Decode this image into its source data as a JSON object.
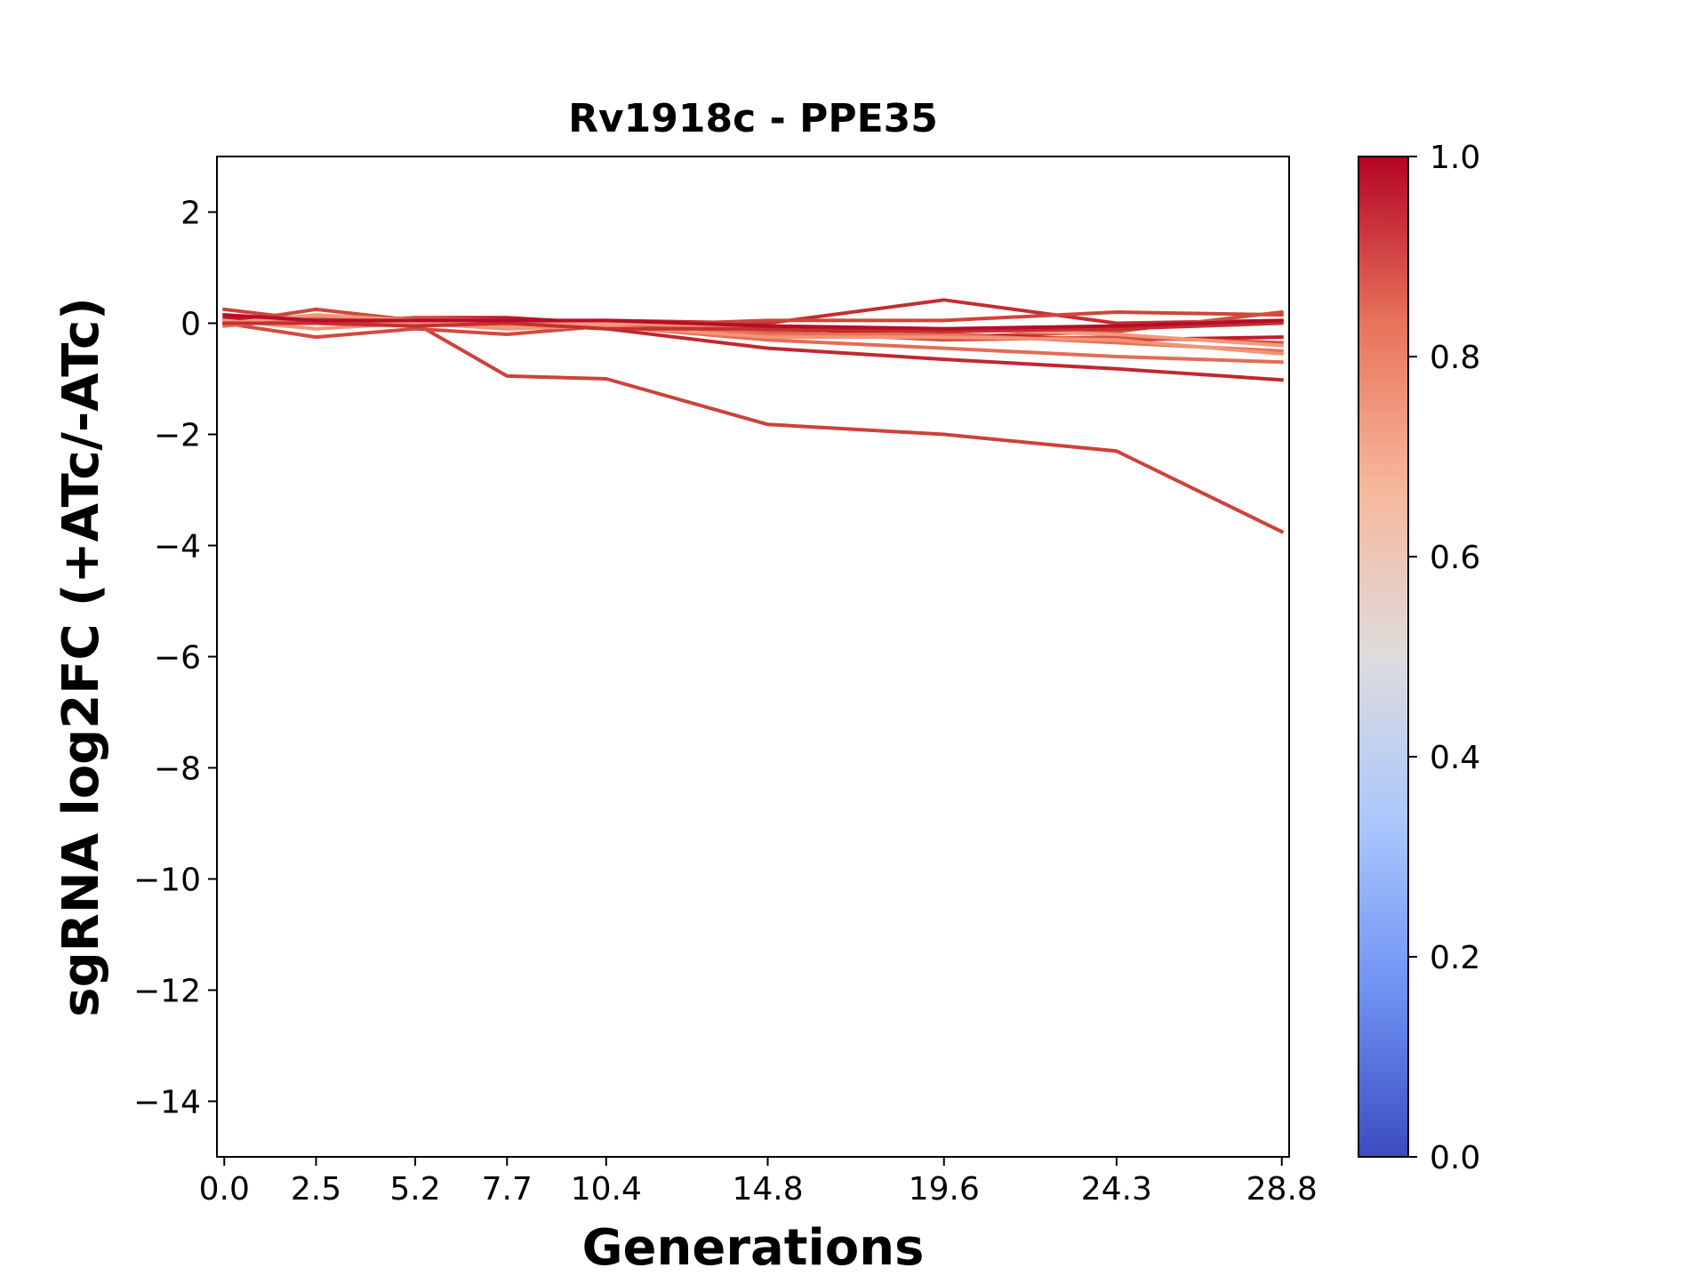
{
  "chart_data": {
    "type": "line",
    "title": "Rv1918c - PPE35",
    "xlabel": "Generations",
    "ylabel": "sgRNA log2FC (+ATc/-ATc)",
    "x": [
      0.0,
      2.5,
      5.2,
      7.7,
      10.4,
      14.8,
      19.6,
      24.3,
      28.8
    ],
    "xticks": [
      "0.0",
      "2.5",
      "5.2",
      "7.7",
      "10.4",
      "14.8",
      "19.6",
      "24.3",
      "28.8"
    ],
    "yticks": [
      2,
      0,
      -2,
      -4,
      -6,
      -8,
      -10,
      -12,
      -14
    ],
    "ytick_labels": [
      "2",
      "0",
      "−2",
      "−4",
      "−6",
      "−8",
      "−10",
      "−12",
      "−14"
    ],
    "xlim": [
      -0.2,
      29.0
    ],
    "ylim": [
      -15,
      3
    ],
    "colorbar": {
      "colormap": "coolwarm",
      "range": [
        0.0,
        1.0
      ],
      "ticks": [
        "0.0",
        "0.2",
        "0.4",
        "0.6",
        "0.8",
        "1.0"
      ],
      "stops": [
        "#3b4cc0",
        "#6f92f3",
        "#aac7fd",
        "#dddcdc",
        "#f7b89c",
        "#e7745b",
        "#b40426"
      ]
    },
    "grid": false,
    "series": [
      {
        "values": [
          0.25,
          0.05,
          0.0,
          -0.95,
          -1.0,
          -1.82,
          -2.0,
          -2.3,
          -3.75
        ],
        "color": "#cd423b"
      },
      {
        "values": [
          0.0,
          0.0,
          0.0,
          0.0,
          -0.1,
          -0.45,
          -0.65,
          -0.82,
          -1.02
        ],
        "color": "#c0282f"
      },
      {
        "values": [
          0.05,
          0.0,
          0.05,
          0.0,
          -0.05,
          -0.3,
          -0.45,
          -0.6,
          -0.7
        ],
        "color": "#e36c55"
      },
      {
        "values": [
          0.0,
          0.05,
          0.0,
          0.0,
          0.05,
          0.0,
          0.42,
          0.0,
          0.05
        ],
        "color": "#c32e31"
      },
      {
        "values": [
          0.0,
          0.25,
          0.05,
          0.05,
          -0.05,
          0.05,
          0.05,
          0.2,
          0.15
        ],
        "color": "#cf453c"
      },
      {
        "values": [
          0.0,
          -0.25,
          -0.1,
          -0.2,
          -0.05,
          -0.2,
          -0.25,
          -0.15,
          0.2
        ],
        "color": "#d24b40"
      },
      {
        "values": [
          0.1,
          0.0,
          0.1,
          0.1,
          0.0,
          -0.1,
          -0.2,
          -0.3,
          -0.25
        ],
        "color": "#bb1b2c"
      },
      {
        "values": [
          0.0,
          0.0,
          0.1,
          0.05,
          0.0,
          -0.15,
          -0.3,
          -0.25,
          -0.35
        ],
        "color": "#d65244"
      },
      {
        "values": [
          -0.05,
          0.1,
          0.0,
          0.0,
          0.05,
          -0.2,
          -0.2,
          -0.35,
          -0.5
        ],
        "color": "#e57058"
      },
      {
        "values": [
          0.05,
          -0.1,
          0.0,
          -0.1,
          -0.05,
          -0.25,
          -0.25,
          -0.3,
          -0.55
        ],
        "color": "#f39475"
      },
      {
        "values": [
          0.0,
          0.15,
          0.05,
          -0.05,
          0.0,
          -0.05,
          -0.1,
          -0.2,
          -0.4
        ],
        "color": "#f4987a"
      },
      {
        "values": [
          0.0,
          0.0,
          -0.05,
          0.0,
          -0.1,
          -0.1,
          -0.15,
          -0.1,
          0.0
        ],
        "color": "#c43032"
      },
      {
        "values": [
          0.15,
          0.05,
          0.05,
          0.05,
          0.05,
          -0.05,
          -0.1,
          -0.05,
          0.05
        ],
        "color": "#b70d28"
      }
    ]
  }
}
